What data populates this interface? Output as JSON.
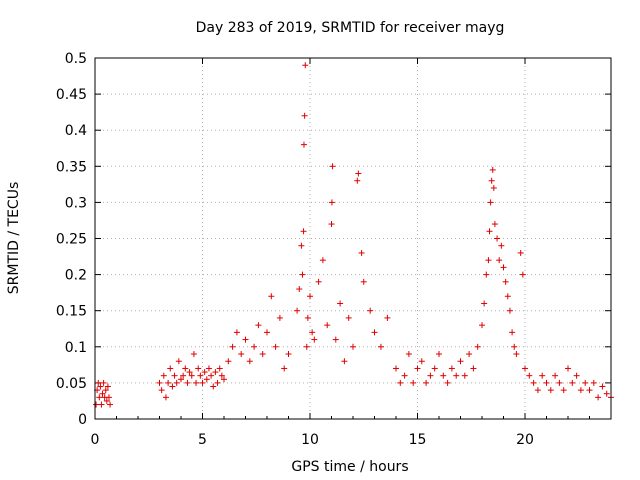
{
  "chart_data": {
    "type": "scatter",
    "title": "Day 283 of 2019, SRMTID for receiver mayg",
    "xlabel": "GPS time / hours",
    "ylabel": "SRMTID / TECUs",
    "xlim": [
      0,
      24
    ],
    "ylim": [
      0,
      0.5
    ],
    "grid": true,
    "marker": "+",
    "color": "#e00000",
    "xticks": [
      0,
      5,
      10,
      15,
      20
    ],
    "xtick_labels": [
      "0",
      "5",
      "10",
      "15",
      "20"
    ],
    "yticks": [
      0,
      0.05,
      0.1,
      0.15,
      0.2,
      0.25,
      0.3,
      0.35,
      0.4,
      0.45,
      0.5
    ],
    "ytick_labels": [
      "0",
      "0.05",
      "0.1",
      "0.15",
      "0.2",
      "0.25",
      "0.3",
      "0.35",
      "0.4",
      "0.45",
      "0.5"
    ],
    "series": [
      {
        "name": "SRMTID",
        "points": [
          [
            0.05,
            0.02
          ],
          [
            0.1,
            0.04
          ],
          [
            0.15,
            0.05
          ],
          [
            0.2,
            0.03
          ],
          [
            0.25,
            0.045
          ],
          [
            0.3,
            0.02
          ],
          [
            0.35,
            0.035
          ],
          [
            0.4,
            0.05
          ],
          [
            0.45,
            0.03
          ],
          [
            0.5,
            0.04
          ],
          [
            0.55,
            0.025
          ],
          [
            0.6,
            0.045
          ],
          [
            0.65,
            0.03
          ],
          [
            0.7,
            0.02
          ],
          [
            3.0,
            0.05
          ],
          [
            3.1,
            0.04
          ],
          [
            3.2,
            0.06
          ],
          [
            3.3,
            0.03
          ],
          [
            3.4,
            0.05
          ],
          [
            3.5,
            0.07
          ],
          [
            3.6,
            0.045
          ],
          [
            3.7,
            0.06
          ],
          [
            3.8,
            0.05
          ],
          [
            3.9,
            0.08
          ],
          [
            4.0,
            0.055
          ],
          [
            4.1,
            0.06
          ],
          [
            4.2,
            0.07
          ],
          [
            4.3,
            0.05
          ],
          [
            4.4,
            0.065
          ],
          [
            4.5,
            0.06
          ],
          [
            4.6,
            0.09
          ],
          [
            4.7,
            0.05
          ],
          [
            4.8,
            0.07
          ],
          [
            4.9,
            0.06
          ],
          [
            5.0,
            0.05
          ],
          [
            5.1,
            0.065
          ],
          [
            5.2,
            0.055
          ],
          [
            5.3,
            0.07
          ],
          [
            5.4,
            0.06
          ],
          [
            5.5,
            0.045
          ],
          [
            5.6,
            0.065
          ],
          [
            5.7,
            0.05
          ],
          [
            5.8,
            0.07
          ],
          [
            5.9,
            0.06
          ],
          [
            6.0,
            0.055
          ],
          [
            6.2,
            0.08
          ],
          [
            6.4,
            0.1
          ],
          [
            6.6,
            0.12
          ],
          [
            6.8,
            0.09
          ],
          [
            7.0,
            0.11
          ],
          [
            7.2,
            0.08
          ],
          [
            7.4,
            0.1
          ],
          [
            7.6,
            0.13
          ],
          [
            7.8,
            0.09
          ],
          [
            8.0,
            0.12
          ],
          [
            8.2,
            0.17
          ],
          [
            8.4,
            0.1
          ],
          [
            8.6,
            0.14
          ],
          [
            8.8,
            0.07
          ],
          [
            9.0,
            0.09
          ],
          [
            9.4,
            0.15
          ],
          [
            9.5,
            0.18
          ],
          [
            9.6,
            0.24
          ],
          [
            9.65,
            0.2
          ],
          [
            9.7,
            0.26
          ],
          [
            9.72,
            0.38
          ],
          [
            9.75,
            0.42
          ],
          [
            9.78,
            0.49
          ],
          [
            9.85,
            0.1
          ],
          [
            9.9,
            0.14
          ],
          [
            10.0,
            0.17
          ],
          [
            10.1,
            0.12
          ],
          [
            10.2,
            0.11
          ],
          [
            10.4,
            0.19
          ],
          [
            10.6,
            0.22
          ],
          [
            10.8,
            0.13
          ],
          [
            11.0,
            0.27
          ],
          [
            11.02,
            0.3
          ],
          [
            11.05,
            0.35
          ],
          [
            11.2,
            0.11
          ],
          [
            11.4,
            0.16
          ],
          [
            11.6,
            0.08
          ],
          [
            11.8,
            0.14
          ],
          [
            12.0,
            0.1
          ],
          [
            12.2,
            0.33
          ],
          [
            12.25,
            0.34
          ],
          [
            12.4,
            0.23
          ],
          [
            12.5,
            0.19
          ],
          [
            12.8,
            0.15
          ],
          [
            13.0,
            0.12
          ],
          [
            13.3,
            0.1
          ],
          [
            13.6,
            0.14
          ],
          [
            14.0,
            0.07
          ],
          [
            14.2,
            0.05
          ],
          [
            14.4,
            0.06
          ],
          [
            14.6,
            0.09
          ],
          [
            14.8,
            0.05
          ],
          [
            15.0,
            0.07
          ],
          [
            15.2,
            0.08
          ],
          [
            15.4,
            0.05
          ],
          [
            15.6,
            0.06
          ],
          [
            15.8,
            0.07
          ],
          [
            16.0,
            0.09
          ],
          [
            16.2,
            0.06
          ],
          [
            16.4,
            0.05
          ],
          [
            16.6,
            0.07
          ],
          [
            16.8,
            0.06
          ],
          [
            17.0,
            0.08
          ],
          [
            17.2,
            0.06
          ],
          [
            17.4,
            0.09
          ],
          [
            17.6,
            0.07
          ],
          [
            17.8,
            0.1
          ],
          [
            18.0,
            0.13
          ],
          [
            18.1,
            0.16
          ],
          [
            18.2,
            0.2
          ],
          [
            18.3,
            0.22
          ],
          [
            18.35,
            0.26
          ],
          [
            18.4,
            0.3
          ],
          [
            18.45,
            0.33
          ],
          [
            18.5,
            0.345
          ],
          [
            18.55,
            0.32
          ],
          [
            18.6,
            0.27
          ],
          [
            18.7,
            0.25
          ],
          [
            18.8,
            0.22
          ],
          [
            18.9,
            0.24
          ],
          [
            19.0,
            0.21
          ],
          [
            19.1,
            0.19
          ],
          [
            19.2,
            0.17
          ],
          [
            19.3,
            0.15
          ],
          [
            19.4,
            0.12
          ],
          [
            19.5,
            0.1
          ],
          [
            19.6,
            0.09
          ],
          [
            19.8,
            0.23
          ],
          [
            19.9,
            0.2
          ],
          [
            20.0,
            0.07
          ],
          [
            20.2,
            0.06
          ],
          [
            20.4,
            0.05
          ],
          [
            20.6,
            0.04
          ],
          [
            20.8,
            0.06
          ],
          [
            21.0,
            0.05
          ],
          [
            21.2,
            0.04
          ],
          [
            21.4,
            0.06
          ],
          [
            21.6,
            0.05
          ],
          [
            21.8,
            0.04
          ],
          [
            22.0,
            0.07
          ],
          [
            22.2,
            0.05
          ],
          [
            22.4,
            0.06
          ],
          [
            22.6,
            0.04
          ],
          [
            22.8,
            0.05
          ],
          [
            23.0,
            0.04
          ],
          [
            23.2,
            0.05
          ],
          [
            23.4,
            0.03
          ],
          [
            23.6,
            0.045
          ],
          [
            23.8,
            0.035
          ],
          [
            24.0,
            0.03
          ]
        ]
      }
    ]
  }
}
